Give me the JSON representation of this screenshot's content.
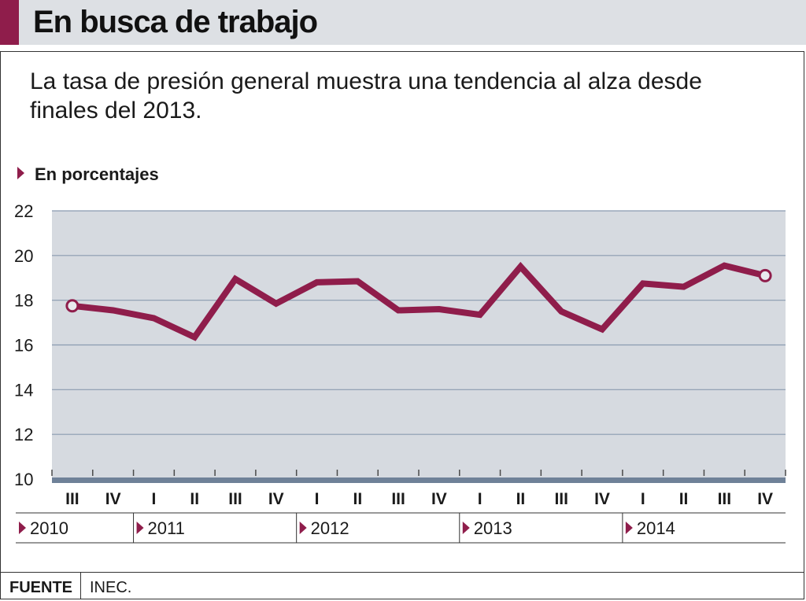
{
  "header": {
    "title": "En busca de trabajo",
    "accent_color": "#8f1d4b"
  },
  "subtitle": "La tasa de presión general muestra una tendencia al alza desde  finales del 2013.",
  "units_label": "En porcentajes",
  "chart_data": {
    "type": "line",
    "title": "En busca de trabajo",
    "subtitle": "La tasa de presión general muestra una tendencia al alza desde  finales del 2013.",
    "ylabel": "En porcentajes",
    "ylim": [
      10,
      22
    ],
    "yticks": [
      10,
      12,
      14,
      16,
      18,
      20,
      22
    ],
    "grid": true,
    "x": [
      "III",
      "IV",
      "I",
      "II",
      "III",
      "IV",
      "I",
      "II",
      "III",
      "IV",
      "I",
      "II",
      "III",
      "IV",
      "I",
      "II",
      "III",
      "IV"
    ],
    "years": [
      {
        "label": "2010",
        "quarters": 2
      },
      {
        "label": "2011",
        "quarters": 4
      },
      {
        "label": "2012",
        "quarters": 4
      },
      {
        "label": "2013",
        "quarters": 4
      },
      {
        "label": "2014",
        "quarters": 4
      }
    ],
    "series": [
      {
        "values": [
          17.75,
          17.55,
          17.2,
          16.35,
          18.95,
          17.85,
          18.8,
          18.85,
          17.55,
          17.6,
          17.35,
          19.5,
          17.5,
          16.7,
          18.75,
          18.6,
          19.55,
          19.1
        ],
        "color": "#8f1d4b"
      }
    ],
    "colors": {
      "plot_background": "#d6dae0",
      "gridline": "#8a9bb0",
      "baseline": "#6f8198",
      "line": "#8f1d4b"
    }
  },
  "footer": {
    "source_label": "FUENTE",
    "source_value": "INEC."
  }
}
